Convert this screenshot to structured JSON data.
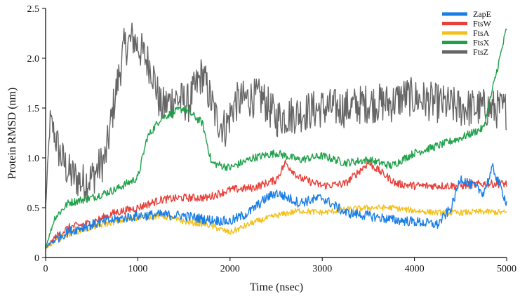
{
  "chart_data": {
    "type": "line",
    "title": "",
    "xlabel": "Time (nsec)",
    "ylabel": "Protein RMSD (nm)",
    "xlim": [
      0,
      5000
    ],
    "ylim": [
      0,
      2.5
    ],
    "x_ticks": [
      0,
      1000,
      2000,
      3000,
      4000,
      5000
    ],
    "y_ticks": [
      0,
      0.5,
      1.0,
      1.5,
      2.0,
      2.5
    ],
    "x_tick_labels": [
      "0",
      "1000",
      "2000",
      "3000",
      "4000",
      "5000"
    ],
    "y_tick_labels": [
      "0",
      "0.5",
      "1.0",
      "1.5",
      "2.0",
      "2.5"
    ],
    "grid": false,
    "legend_position": "top-right",
    "series": [
      {
        "name": "ZapE",
        "color": "#1a7ee6",
        "x": [
          0,
          100,
          250,
          500,
          750,
          1000,
          1250,
          1500,
          1750,
          2000,
          2200,
          2400,
          2500,
          2750,
          3000,
          3250,
          3500,
          3750,
          4000,
          4250,
          4400,
          4500,
          4750,
          4850,
          5000
        ],
        "y": [
          0.1,
          0.18,
          0.26,
          0.33,
          0.38,
          0.42,
          0.43,
          0.42,
          0.38,
          0.36,
          0.45,
          0.6,
          0.65,
          0.55,
          0.6,
          0.45,
          0.42,
          0.38,
          0.36,
          0.33,
          0.5,
          0.8,
          0.65,
          0.9,
          0.55
        ]
      },
      {
        "name": "FtsW",
        "color": "#e8403a",
        "x": [
          0,
          100,
          250,
          500,
          750,
          1000,
          1250,
          1500,
          1750,
          2000,
          2250,
          2500,
          2600,
          2750,
          3000,
          3250,
          3500,
          3750,
          3800,
          4000,
          4250,
          4500,
          4750,
          5000
        ],
        "y": [
          0.08,
          0.2,
          0.3,
          0.35,
          0.45,
          0.5,
          0.58,
          0.6,
          0.6,
          0.68,
          0.7,
          0.78,
          0.95,
          0.8,
          0.72,
          0.74,
          0.95,
          0.78,
          0.74,
          0.72,
          0.72,
          0.72,
          0.74,
          0.74
        ]
      },
      {
        "name": "FtsA",
        "color": "#f5c01a",
        "x": [
          0,
          100,
          250,
          500,
          750,
          1000,
          1250,
          1500,
          1750,
          2000,
          2250,
          2500,
          2750,
          3000,
          3250,
          3500,
          3750,
          4000,
          4250,
          4500,
          4750,
          5000
        ],
        "y": [
          0.08,
          0.16,
          0.24,
          0.3,
          0.36,
          0.4,
          0.42,
          0.36,
          0.33,
          0.25,
          0.35,
          0.42,
          0.47,
          0.45,
          0.48,
          0.5,
          0.5,
          0.47,
          0.45,
          0.45,
          0.46,
          0.45
        ]
      },
      {
        "name": "FtsX",
        "color": "#1fa14a",
        "x": [
          0,
          100,
          250,
          500,
          750,
          1000,
          1100,
          1250,
          1500,
          1700,
          1800,
          2000,
          2250,
          2500,
          2750,
          3000,
          3250,
          3500,
          3750,
          4000,
          4250,
          4500,
          4750,
          4800,
          4900,
          5000
        ],
        "y": [
          0.1,
          0.4,
          0.55,
          0.6,
          0.68,
          0.8,
          1.2,
          1.4,
          1.5,
          1.35,
          0.95,
          0.9,
          1.0,
          1.05,
          0.98,
          1.02,
          0.95,
          0.98,
          0.92,
          1.05,
          1.12,
          1.2,
          1.3,
          1.5,
          1.9,
          2.3
        ]
      },
      {
        "name": "FtsZ",
        "color": "#666666",
        "x": [
          0,
          50,
          150,
          250,
          400,
          500,
          650,
          750,
          850,
          950,
          1050,
          1150,
          1250,
          1400,
          1550,
          1700,
          1850,
          1950,
          2050,
          2200,
          2350,
          2500,
          2750,
          3000,
          3250,
          3500,
          3750,
          3900,
          4000,
          4250,
          4500,
          4750,
          5000
        ],
        "y": [
          0.5,
          1.4,
          1.05,
          0.85,
          0.75,
          0.8,
          1.0,
          1.6,
          2.1,
          2.2,
          2.05,
          1.9,
          1.5,
          1.6,
          1.55,
          1.85,
          1.4,
          1.3,
          1.55,
          1.6,
          1.6,
          1.4,
          1.45,
          1.5,
          1.5,
          1.55,
          1.55,
          1.62,
          1.6,
          1.55,
          1.5,
          1.5,
          1.48
        ]
      }
    ]
  }
}
